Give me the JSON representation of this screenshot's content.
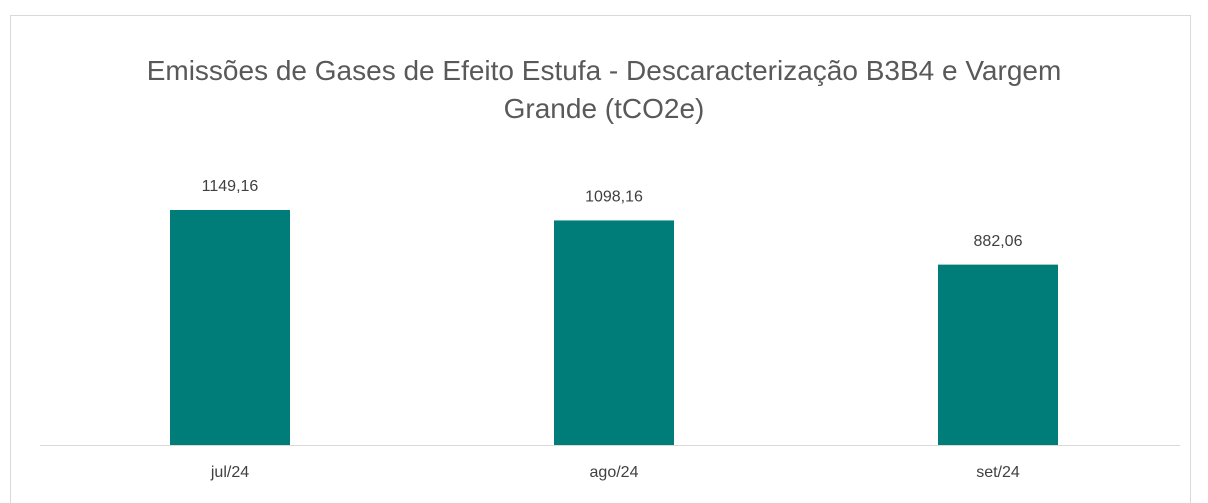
{
  "chart_data": {
    "type": "bar",
    "title": "Emissões de Gases de Efeito Estufa - Descaracterização B3B4 e Vargem Grande (tCO2e)",
    "categories": [
      "jul/24",
      "ago/24",
      "set/24"
    ],
    "values": [
      1149.16,
      1098.16,
      882.06
    ],
    "value_labels": [
      "1149,16",
      "1098,16",
      "882,06"
    ],
    "color": "#007d78"
  }
}
